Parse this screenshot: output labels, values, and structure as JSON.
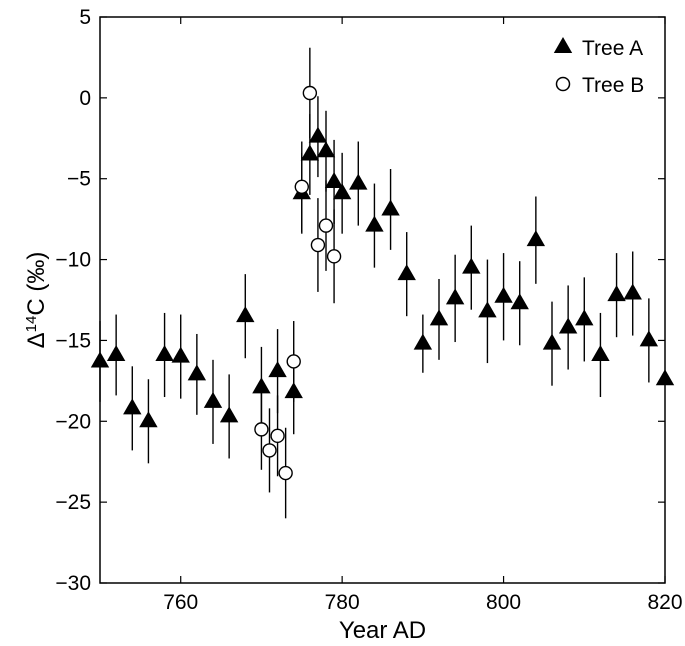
{
  "chart_data": {
    "type": "scatter",
    "title": "",
    "xlabel": "Year AD",
    "ylabel": {
      "prefix": "Δ",
      "sup": "14",
      "suffix": "C (‰)"
    },
    "xlim": [
      750,
      820
    ],
    "ylim": [
      -30,
      5
    ],
    "xticks": [
      {
        "value": 760,
        "label": "760"
      },
      {
        "value": 780,
        "label": "780"
      },
      {
        "value": 800,
        "label": "800"
      },
      {
        "value": 820,
        "label": "820"
      }
    ],
    "yticks": [
      {
        "value": 5,
        "label": "5"
      },
      {
        "value": 0,
        "label": "0"
      },
      {
        "value": -5,
        "label": "−5"
      },
      {
        "value": -10,
        "label": "−10"
      },
      {
        "value": -15,
        "label": "−15"
      },
      {
        "value": -20,
        "label": "−20"
      },
      {
        "value": -25,
        "label": "−25"
      },
      {
        "value": -30,
        "label": "−30"
      }
    ],
    "grid": false,
    "legend_position": "top-right",
    "series": [
      {
        "name": "Tree A",
        "marker": "filled-triangle",
        "color": "#000000",
        "points": [
          {
            "x": 750,
            "y": -16.3,
            "err": 2.5
          },
          {
            "x": 752,
            "y": -15.9,
            "err": 2.5
          },
          {
            "x": 754,
            "y": -19.2,
            "err": 2.6
          },
          {
            "x": 756,
            "y": -20.0,
            "err": 2.6
          },
          {
            "x": 758,
            "y": -15.9,
            "err": 2.6
          },
          {
            "x": 760,
            "y": -16.0,
            "err": 2.6
          },
          {
            "x": 762,
            "y": -17.1,
            "err": 2.5
          },
          {
            "x": 764,
            "y": -18.8,
            "err": 2.6
          },
          {
            "x": 766,
            "y": -19.7,
            "err": 2.6
          },
          {
            "x": 768,
            "y": -13.5,
            "err": 2.6
          },
          {
            "x": 770,
            "y": -17.9,
            "err": 2.5
          },
          {
            "x": 772,
            "y": -16.9,
            "err": 2.6
          },
          {
            "x": 774,
            "y": -18.2,
            "err": 2.6
          },
          {
            "x": 775,
            "y": -5.9,
            "err": 2.5
          },
          {
            "x": 776,
            "y": -3.5,
            "err": 2.5
          },
          {
            "x": 777,
            "y": -2.4,
            "err": 2.5
          },
          {
            "x": 778,
            "y": -3.3,
            "err": 2.5
          },
          {
            "x": 779,
            "y": -5.2,
            "err": 2.6
          },
          {
            "x": 780,
            "y": -5.9,
            "err": 2.5
          },
          {
            "x": 782,
            "y": -5.3,
            "err": 2.6
          },
          {
            "x": 784,
            "y": -7.9,
            "err": 2.6
          },
          {
            "x": 786,
            "y": -6.9,
            "err": 2.5
          },
          {
            "x": 788,
            "y": -10.9,
            "err": 2.6
          },
          {
            "x": 790,
            "y": -15.2,
            "err": 1.8
          },
          {
            "x": 792,
            "y": -13.7,
            "err": 2.5
          },
          {
            "x": 794,
            "y": -12.4,
            "err": 2.7
          },
          {
            "x": 796,
            "y": -10.5,
            "err": 2.6
          },
          {
            "x": 798,
            "y": -13.2,
            "err": 3.2
          },
          {
            "x": 800,
            "y": -12.3,
            "err": 2.7
          },
          {
            "x": 802,
            "y": -12.7,
            "err": 2.6
          },
          {
            "x": 804,
            "y": -8.8,
            "err": 2.7
          },
          {
            "x": 806,
            "y": -15.2,
            "err": 2.6
          },
          {
            "x": 808,
            "y": -14.2,
            "err": 2.6
          },
          {
            "x": 810,
            "y": -13.7,
            "err": 2.6
          },
          {
            "x": 812,
            "y": -15.9,
            "err": 2.6
          },
          {
            "x": 814,
            "y": -12.2,
            "err": 2.6
          },
          {
            "x": 816,
            "y": -12.1,
            "err": 2.6
          },
          {
            "x": 818,
            "y": -15.0,
            "err": 2.6
          },
          {
            "x": 820,
            "y": -17.4,
            "err": 0
          }
        ]
      },
      {
        "name": "Tree B",
        "marker": "open-circle",
        "color": "#000000",
        "points": [
          {
            "x": 770,
            "y": -20.5,
            "err": 2.5
          },
          {
            "x": 771,
            "y": -21.8,
            "err": 2.6
          },
          {
            "x": 772,
            "y": -20.9,
            "err": 2.5
          },
          {
            "x": 773,
            "y": -23.2,
            "err": 2.8
          },
          {
            "x": 774,
            "y": -16.3,
            "err": 2.5
          },
          {
            "x": 775,
            "y": -5.5,
            "err": 2.8
          },
          {
            "x": 776,
            "y": 0.3,
            "err": 2.8
          },
          {
            "x": 777,
            "y": -9.1,
            "err": 2.9
          },
          {
            "x": 778,
            "y": -7.9,
            "err": 2.8
          },
          {
            "x": 779,
            "y": -9.8,
            "err": 2.9
          }
        ]
      }
    ]
  }
}
